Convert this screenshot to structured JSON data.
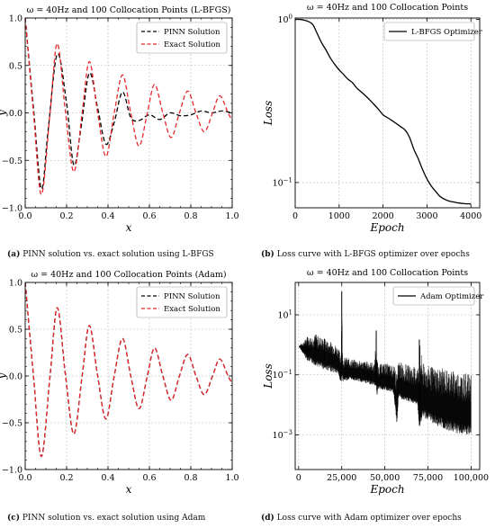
{
  "captions": [
    {
      "letter": "(a)",
      "text": "PINN solution vs. exact solution using L-BFGS"
    },
    {
      "letter": "(b)",
      "text": "Loss curve with L-BFGS optimizer over epochs"
    },
    {
      "letter": "(c)",
      "text": "PINN solution vs. exact solution using Adam"
    },
    {
      "letter": "(d)",
      "text": "Loss curve with Adam optimizer over epochs"
    }
  ],
  "chart_data": [
    {
      "id": "a",
      "type": "line",
      "title": "ω = 40Hz and 100 Collocation Points (L-BFGS)",
      "xlabel": "x",
      "ylabel": "y",
      "xlim": [
        0,
        1
      ],
      "ylim": [
        -1,
        1
      ],
      "xticks": [
        "0.0",
        "0.2",
        "0.4",
        "0.6",
        "0.8",
        "1.0"
      ],
      "yticks": [
        "-1.0",
        "-0.5",
        "0.0",
        "0.5",
        "1.0"
      ],
      "grid": true,
      "legend": "top-right",
      "series": [
        {
          "name": "PINN Solution",
          "color": "#000000",
          "dash": true,
          "x": [
            0,
            0.04,
            0.078,
            0.11,
            0.155,
            0.2,
            0.235,
            0.27,
            0.31,
            0.35,
            0.39,
            0.43,
            0.47,
            0.51,
            0.55,
            0.6,
            0.65,
            0.7,
            0.75,
            0.8,
            0.85,
            0.9,
            0.95,
            1.0
          ],
          "y": [
            1.0,
            0.05,
            -0.8,
            -0.2,
            0.62,
            0.1,
            -0.55,
            -0.15,
            0.42,
            0.05,
            -0.33,
            -0.1,
            0.22,
            -0.05,
            -0.08,
            -0.02,
            -0.07,
            0.0,
            -0.03,
            -0.02,
            0.02,
            0.0,
            0.02,
            0.0
          ]
        },
        {
          "name": "Exact Solution",
          "color": "#e8262d",
          "dash": true,
          "x": [
            0,
            0.04,
            0.078,
            0.12,
            0.155,
            0.195,
            0.235,
            0.275,
            0.31,
            0.35,
            0.39,
            0.43,
            0.47,
            0.51,
            0.55,
            0.59,
            0.625,
            0.665,
            0.705,
            0.745,
            0.785,
            0.825,
            0.865,
            0.905,
            0.94,
            0.98,
            1.0
          ],
          "y": [
            1.0,
            0.0,
            -0.86,
            0.0,
            0.73,
            0.0,
            -0.62,
            0.0,
            0.54,
            0.0,
            -0.46,
            0.0,
            0.4,
            0.0,
            -0.35,
            0.0,
            0.3,
            0.0,
            -0.26,
            0.0,
            0.23,
            0.0,
            -0.2,
            0.0,
            0.18,
            0.0,
            -0.08
          ]
        }
      ]
    },
    {
      "id": "b",
      "type": "line",
      "title": "ω = 40Hz and 100 Collocation Points",
      "xlabel": "Epoch",
      "ylabel": "Loss",
      "xlim": [
        0,
        4200
      ],
      "ylim": [
        0.07,
        1.02
      ],
      "yscale": "log",
      "xticks": [
        "0",
        "1000",
        "2000",
        "3000",
        "4000"
      ],
      "yticks": [
        "10^0",
        "10^-1"
      ],
      "grid": true,
      "legend": "top-right",
      "series": [
        {
          "name": "L-BFGS Optimizer",
          "color": "#000000",
          "x": [
            0,
            100,
            200,
            300,
            400,
            500,
            600,
            700,
            800,
            900,
            1000,
            1100,
            1200,
            1300,
            1400,
            1500,
            1600,
            1700,
            1800,
            1900,
            2000,
            2100,
            2200,
            2300,
            2400,
            2500,
            2600,
            2700,
            2800,
            2900,
            3000,
            3100,
            3200,
            3300,
            3400,
            3500,
            3600,
            3700,
            3800,
            3900,
            4000
          ],
          "y": [
            1.0,
            1.0,
            0.99,
            0.97,
            0.93,
            0.82,
            0.72,
            0.65,
            0.58,
            0.53,
            0.49,
            0.46,
            0.43,
            0.41,
            0.38,
            0.36,
            0.34,
            0.32,
            0.3,
            0.28,
            0.26,
            0.25,
            0.24,
            0.23,
            0.22,
            0.21,
            0.19,
            0.16,
            0.14,
            0.12,
            0.105,
            0.095,
            0.088,
            0.082,
            0.079,
            0.077,
            0.076,
            0.075,
            0.0745,
            0.074,
            0.074
          ]
        }
      ]
    },
    {
      "id": "c",
      "type": "line",
      "title": "ω = 40Hz and 100 Collocation Points (Adam)",
      "xlabel": "x",
      "ylabel": "y",
      "xlim": [
        0,
        1
      ],
      "ylim": [
        -1,
        1
      ],
      "xticks": [
        "0.0",
        "0.2",
        "0.4",
        "0.6",
        "0.8",
        "1.0"
      ],
      "yticks": [
        "-1.0",
        "-0.5",
        "0.0",
        "0.5",
        "1.0"
      ],
      "grid": true,
      "legend": "top-right",
      "series": [
        {
          "name": "PINN Solution",
          "color": "#000000",
          "dash": true,
          "x": [
            0,
            0.04,
            0.078,
            0.12,
            0.155,
            0.195,
            0.235,
            0.275,
            0.31,
            0.35,
            0.39,
            0.43,
            0.47,
            0.51,
            0.55,
            0.59,
            0.625,
            0.665,
            0.705,
            0.745,
            0.785,
            0.825,
            0.865,
            0.905,
            0.94,
            0.98,
            1.0
          ],
          "y": [
            1.0,
            0.0,
            -0.86,
            0.0,
            0.73,
            0.0,
            -0.62,
            0.0,
            0.54,
            0.0,
            -0.46,
            0.0,
            0.4,
            0.0,
            -0.35,
            0.0,
            0.3,
            0.0,
            -0.26,
            0.0,
            0.23,
            0.0,
            -0.2,
            0.0,
            0.18,
            0.0,
            -0.08
          ]
        },
        {
          "name": "Exact Solution",
          "color": "#e8262d",
          "dash": true,
          "x": [
            0,
            0.04,
            0.078,
            0.12,
            0.155,
            0.195,
            0.235,
            0.275,
            0.31,
            0.35,
            0.39,
            0.43,
            0.47,
            0.51,
            0.55,
            0.59,
            0.625,
            0.665,
            0.705,
            0.745,
            0.785,
            0.825,
            0.865,
            0.905,
            0.94,
            0.98,
            1.0
          ],
          "y": [
            1.0,
            0.0,
            -0.86,
            0.0,
            0.73,
            0.0,
            -0.62,
            0.0,
            0.54,
            0.0,
            -0.46,
            0.0,
            0.4,
            0.0,
            -0.35,
            0.0,
            0.3,
            0.0,
            -0.26,
            0.0,
            0.23,
            0.0,
            -0.2,
            0.0,
            0.18,
            0.0,
            -0.08
          ]
        }
      ]
    },
    {
      "id": "d",
      "type": "line",
      "title": "ω = 40Hz and 100 Collocation Points",
      "xlabel": "Epoch",
      "ylabel": "Loss",
      "xlim": [
        -2000,
        105000
      ],
      "ylim": [
        7e-05,
        120
      ],
      "yscale": "log",
      "xticks": [
        "0",
        "25,000",
        "50,000",
        "75,000",
        "100,000"
      ],
      "yticks": [
        "10^1",
        "10^-1",
        "10^-3"
      ],
      "grid": true,
      "legend": "top-right",
      "series": [
        {
          "name": "Adam Optimizer",
          "color": "#000000",
          "noisy": true,
          "x": [
            0,
            5000,
            10000,
            15000,
            20000,
            23000,
            24500,
            25000,
            25500,
            30000,
            35000,
            40000,
            44000,
            45000,
            45500,
            46000,
            50000,
            55000,
            57000,
            58000,
            60000,
            65000,
            69000,
            70000,
            72000,
            75000,
            80000,
            85000,
            90000,
            95000,
            100000
          ],
          "y_upper": [
            0.9,
            1.8,
            2.2,
            1.6,
            1.2,
            0.8,
            0.5,
            60,
            0.4,
            0.35,
            0.3,
            0.28,
            0.25,
            3.0,
            0.4,
            0.22,
            0.25,
            0.2,
            0.15,
            0.3,
            0.25,
            0.2,
            0.18,
            1.5,
            0.25,
            0.2,
            0.18,
            0.16,
            0.14,
            0.12,
            0.1
          ],
          "y_lower": [
            0.9,
            0.3,
            0.2,
            0.15,
            0.12,
            0.1,
            0.05,
            0.08,
            0.06,
            0.07,
            0.06,
            0.05,
            0.045,
            0.04,
            0.02,
            0.035,
            0.03,
            0.025,
            0.002,
            0.02,
            0.015,
            0.012,
            0.01,
            0.0015,
            0.004,
            0.003,
            0.002,
            0.0015,
            0.0012,
            0.001,
            0.0009
          ],
          "y_center": [
            0.9,
            0.5,
            0.4,
            0.3,
            0.25,
            0.2,
            0.08,
            0.15,
            0.1,
            0.1,
            0.09,
            0.08,
            0.07,
            0.06,
            0.035,
            0.05,
            0.05,
            0.04,
            0.004,
            0.03,
            0.025,
            0.02,
            0.015,
            0.003,
            0.01,
            0.008,
            0.006,
            0.005,
            0.004,
            0.003,
            0.003
          ]
        }
      ]
    }
  ]
}
